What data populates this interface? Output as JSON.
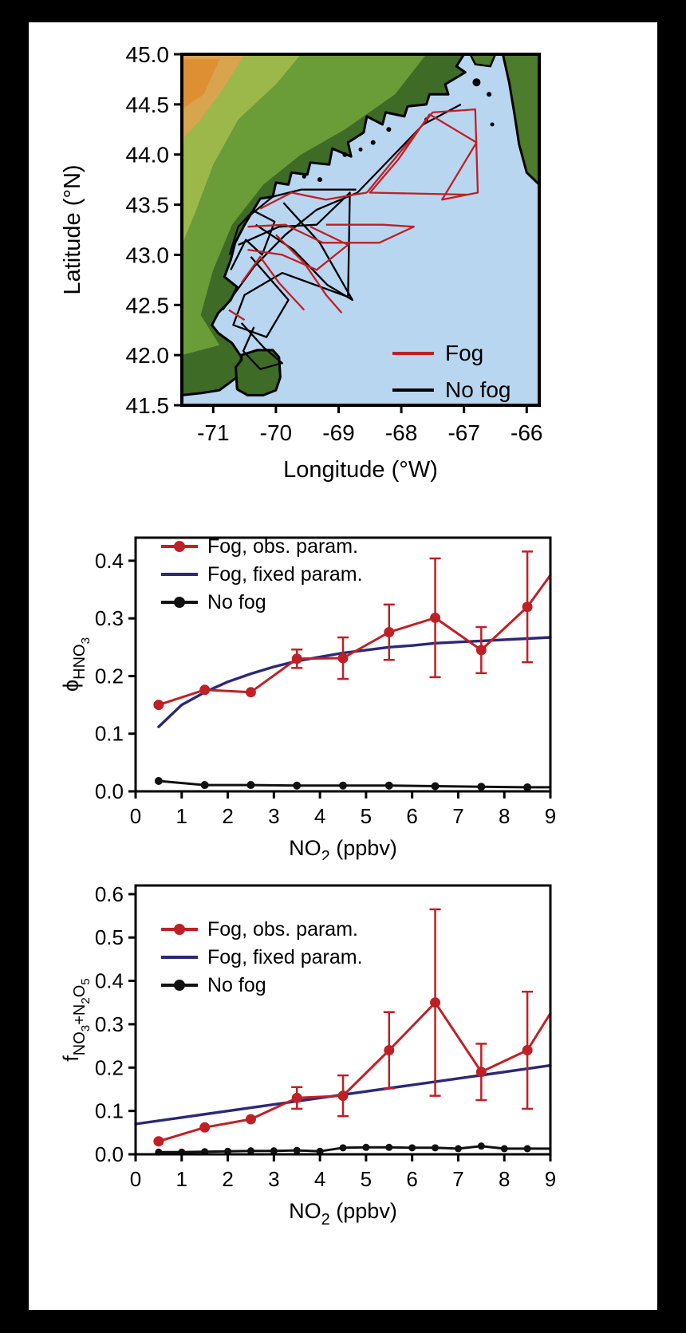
{
  "figure": {
    "frame_color": "#000000",
    "panel_color": "#ffffff"
  },
  "map": {
    "ylabel_parts": [
      [
        "Latitude (°N)",
        0
      ]
    ],
    "xlabel_parts": [
      [
        "Longitude (°W)",
        0
      ]
    ],
    "lat_range": [
      41.5,
      45.0
    ],
    "lon_range": [
      -71.5,
      -65.8
    ],
    "lat_tick_values": [
      45.0,
      44.5,
      44.0,
      43.5,
      43.0,
      42.5,
      42.0,
      41.5
    ],
    "lat_tick_labels": [
      "45.0",
      "44.5",
      "44.0",
      "43.5",
      "43.0",
      "42.5",
      "42.0",
      "41.5"
    ],
    "lon_tick_values": [
      -71,
      -70,
      -69,
      -68,
      -67,
      -66
    ],
    "lon_tick_labels": [
      "-71",
      "-70",
      "-69",
      "-68",
      "-67",
      "-66"
    ],
    "ocean_color": "#b8d6f0",
    "land_base_color": "#3e6b26",
    "legend": [
      {
        "label": "Fog",
        "color": "#bf2026"
      },
      {
        "label": "No fog",
        "color": "#000000"
      }
    ],
    "land": {
      "mainland": [
        [
          -71.5,
          45.0
        ],
        [
          -67.0,
          45.0
        ],
        [
          -67.12,
          44.88
        ],
        [
          -66.98,
          44.82
        ],
        [
          -67.3,
          44.7
        ],
        [
          -67.25,
          44.6
        ],
        [
          -67.55,
          44.6
        ],
        [
          -67.6,
          44.5
        ],
        [
          -67.9,
          44.48
        ],
        [
          -67.95,
          44.38
        ],
        [
          -68.25,
          44.42
        ],
        [
          -68.3,
          44.3
        ],
        [
          -68.55,
          44.38
        ],
        [
          -68.6,
          44.22
        ],
        [
          -68.85,
          44.12
        ],
        [
          -68.8,
          43.98
        ],
        [
          -69.1,
          44.06
        ],
        [
          -69.15,
          43.9
        ],
        [
          -69.45,
          43.92
        ],
        [
          -69.5,
          43.8
        ],
        [
          -69.75,
          43.82
        ],
        [
          -69.8,
          43.7
        ],
        [
          -70.0,
          43.72
        ],
        [
          -70.05,
          43.58
        ],
        [
          -70.25,
          43.56
        ],
        [
          -70.5,
          43.3
        ],
        [
          -70.65,
          43.12
        ],
        [
          -70.72,
          42.95
        ],
        [
          -70.82,
          42.78
        ],
        [
          -70.62,
          42.68
        ],
        [
          -70.72,
          42.55
        ],
        [
          -70.92,
          42.42
        ],
        [
          -71.02,
          42.3
        ],
        [
          -70.92,
          42.22
        ],
        [
          -70.7,
          42.12
        ],
        [
          -70.55,
          41.98
        ],
        [
          -70.62,
          41.78
        ],
        [
          -70.9,
          41.65
        ],
        [
          -71.2,
          41.62
        ],
        [
          -71.5,
          41.6
        ]
      ],
      "cape_cod": [
        [
          -70.55,
          42.0
        ],
        [
          -70.3,
          42.05
        ],
        [
          -70.05,
          42.05
        ],
        [
          -69.95,
          41.98
        ],
        [
          -69.93,
          41.78
        ],
        [
          -70.0,
          41.65
        ],
        [
          -70.2,
          41.6
        ],
        [
          -70.45,
          41.6
        ],
        [
          -70.62,
          41.66
        ],
        [
          -70.64,
          41.88
        ],
        [
          -70.55,
          41.95
        ]
      ],
      "nova_scotia": [
        [
          -66.38,
          45.0
        ],
        [
          -65.8,
          45.0
        ],
        [
          -65.8,
          43.7
        ],
        [
          -66.0,
          43.82
        ],
        [
          -66.12,
          44.1
        ],
        [
          -66.2,
          44.42
        ],
        [
          -66.28,
          44.72
        ]
      ],
      "extras": [
        [
          [
            -66.9,
            45.0
          ],
          [
            -66.5,
            45.0
          ],
          [
            -66.58,
            44.88
          ],
          [
            -66.82,
            44.9
          ]
        ]
      ],
      "overlays": [
        {
          "color": "#6a9c38",
          "points": [
            [
              -71.5,
              45.0
            ],
            [
              -67.6,
              45.0
            ],
            [
              -68.1,
              44.6
            ],
            [
              -68.9,
              44.25
            ],
            [
              -69.6,
              44.0
            ],
            [
              -70.2,
              43.7
            ],
            [
              -70.7,
              43.3
            ],
            [
              -71.0,
              42.85
            ],
            [
              -71.2,
              42.4
            ],
            [
              -70.9,
              42.1
            ],
            [
              -71.5,
              42.0
            ]
          ]
        },
        {
          "color": "#9cb84a",
          "points": [
            [
              -71.5,
              45.0
            ],
            [
              -69.6,
              45.0
            ],
            [
              -70.0,
              44.7
            ],
            [
              -70.6,
              44.35
            ],
            [
              -71.0,
              43.9
            ],
            [
              -71.3,
              43.4
            ],
            [
              -71.5,
              43.1
            ]
          ]
        },
        {
          "color": "#d9a44e",
          "points": [
            [
              -71.5,
              45.0
            ],
            [
              -70.5,
              45.0
            ],
            [
              -70.85,
              44.65
            ],
            [
              -71.2,
              44.35
            ],
            [
              -71.5,
              44.15
            ]
          ]
        },
        {
          "color": "#df8f33",
          "points": [
            [
              -71.5,
              44.95
            ],
            [
              -70.9,
              44.95
            ],
            [
              -71.15,
              44.6
            ],
            [
              -71.5,
              44.45
            ]
          ]
        }
      ],
      "islands": [
        [
          -68.9,
          44.0,
          3
        ],
        [
          -68.45,
          44.12,
          3
        ],
        [
          -68.2,
          44.25,
          3
        ],
        [
          -69.3,
          43.75,
          3
        ],
        [
          -69.55,
          43.78,
          2.5
        ],
        [
          -66.8,
          44.72,
          5
        ],
        [
          -68.65,
          44.05,
          2.5
        ],
        [
          -67.6,
          44.35,
          2.5
        ],
        [
          -66.6,
          44.6,
          3
        ],
        [
          -66.55,
          44.3,
          2.5
        ]
      ]
    },
    "tracks": {
      "fog": [
        [
          [
            -68.55,
            43.62
          ],
          [
            -67.5,
            44.42
          ],
          [
            -66.82,
            44.45
          ],
          [
            -66.78,
            43.62
          ],
          [
            -67.35,
            43.55
          ],
          [
            -66.8,
            44.12
          ],
          [
            -67.55,
            44.4
          ],
          [
            -68.05,
            43.95
          ],
          [
            -68.5,
            43.62
          ],
          [
            -66.95,
            43.6
          ]
        ],
        [
          [
            -70.45,
            43.28
          ],
          [
            -69.85,
            43.3
          ],
          [
            -69.25,
            43.12
          ],
          [
            -68.35,
            43.12
          ],
          [
            -67.8,
            43.28
          ],
          [
            -68.3,
            43.3
          ],
          [
            -69.2,
            43.3
          ]
        ],
        [
          [
            -70.25,
            43.46
          ],
          [
            -69.75,
            43.62
          ],
          [
            -69.2,
            43.55
          ],
          [
            -68.75,
            43.6
          ],
          [
            -68.55,
            43.62
          ]
        ],
        [
          [
            -70.0,
            43.2
          ],
          [
            -69.55,
            42.92
          ],
          [
            -69.2,
            42.6
          ],
          [
            -68.95,
            42.42
          ]
        ],
        [
          [
            -70.55,
            42.72
          ],
          [
            -70.25,
            42.98
          ],
          [
            -69.95,
            42.72
          ],
          [
            -69.55,
            42.45
          ]
        ],
        [
          [
            -70.45,
            43.05
          ],
          [
            -69.9,
            43.0
          ],
          [
            -69.35,
            42.85
          ],
          [
            -68.85,
            43.1
          ],
          [
            -69.45,
            43.28
          ]
        ],
        [
          [
            -70.75,
            42.45
          ],
          [
            -70.5,
            42.35
          ]
        ]
      ],
      "no_fog": [
        [
          [
            -70.85,
            42.45
          ],
          [
            -70.35,
            42.88
          ],
          [
            -69.85,
            43.2
          ],
          [
            -69.35,
            43.45
          ],
          [
            -68.7,
            43.62
          ],
          [
            -67.65,
            44.3
          ],
          [
            -67.05,
            44.5
          ]
        ],
        [
          [
            -70.6,
            43.1
          ],
          [
            -69.95,
            43.28
          ],
          [
            -69.35,
            43.3
          ],
          [
            -68.82,
            43.62
          ],
          [
            -68.85,
            42.58
          ],
          [
            -69.9,
            42.82
          ],
          [
            -70.5,
            42.6
          ],
          [
            -70.68,
            42.3
          ],
          [
            -70.15,
            42.18
          ],
          [
            -69.8,
            42.55
          ],
          [
            -70.4,
            42.98
          ]
        ],
        [
          [
            -70.5,
            43.35
          ],
          [
            -70.05,
            43.58
          ],
          [
            -69.6,
            43.65
          ],
          [
            -69.1,
            43.65
          ],
          [
            -68.72,
            43.65
          ]
        ],
        [
          [
            -70.55,
            42.32
          ],
          [
            -70.2,
            42.08
          ],
          [
            -69.9,
            41.92
          ],
          [
            -70.25,
            41.86
          ],
          [
            -70.52,
            42.04
          ],
          [
            -70.35,
            42.28
          ]
        ],
        [
          [
            -70.32,
            43.3
          ],
          [
            -69.72,
            43.05
          ],
          [
            -69.18,
            42.7
          ],
          [
            -68.78,
            42.55
          ],
          [
            -69.3,
            43.12
          ],
          [
            -69.88,
            43.52
          ]
        ],
        [
          [
            -70.72,
            42.85
          ],
          [
            -70.48,
            43.15
          ],
          [
            -70.22,
            43.0
          ],
          [
            -70.02,
            43.33
          ],
          [
            -70.36,
            43.44
          ],
          [
            -70.6,
            43.28
          ],
          [
            -70.74,
            43.0
          ]
        ]
      ]
    }
  },
  "chart_data": [
    {
      "type": "line",
      "xlabel_parts": [
        [
          "NO",
          0
        ],
        [
          "2",
          1
        ],
        [
          " (ppbv)",
          0
        ]
      ],
      "ylabel_parts": [
        [
          "ϕ",
          0
        ],
        [
          "HNO",
          1
        ],
        [
          "3",
          2
        ]
      ],
      "xlim": [
        0,
        9
      ],
      "ylim": [
        0,
        0.44
      ],
      "xticks": [
        0,
        1,
        2,
        3,
        4,
        5,
        6,
        7,
        8,
        9
      ],
      "xtick_labels": [
        "0",
        "1",
        "2",
        "3",
        "4",
        "5",
        "6",
        "7",
        "8",
        "9"
      ],
      "yticks": [
        0,
        0.1,
        0.2,
        0.3,
        0.4
      ],
      "ytick_labels": [
        "0.0",
        "0.1",
        "0.2",
        "0.3",
        "0.4"
      ],
      "legend_position": "upper left",
      "series": [
        {
          "name": "Fog, obs. param.",
          "color": "#bf2026",
          "marker": true,
          "marker_r": 6.5,
          "width": 3,
          "z": 3,
          "x": [
            0.5,
            1.5,
            2.5,
            3.5,
            4.5,
            5.5,
            6.5,
            7.5,
            8.5
          ],
          "y": [
            0.15,
            0.176,
            0.172,
            0.23,
            0.231,
            0.276,
            0.301,
            0.245,
            0.32
          ],
          "err": [
            0,
            0,
            0,
            0.016,
            0.036,
            0.048,
            0.103,
            0.04,
            0.096
          ],
          "tail": [
            9.0,
            0.375
          ]
        },
        {
          "name": "Fog, fixed param.",
          "color": "#2b2878",
          "marker": false,
          "width": 3.4,
          "z": 1,
          "x": [
            0.5,
            1,
            1.5,
            2,
            2.5,
            3,
            3.5,
            4,
            4.5,
            5,
            5.5,
            6,
            6.5,
            7,
            7.5,
            8,
            8.5,
            9
          ],
          "y": [
            0.112,
            0.15,
            0.172,
            0.19,
            0.204,
            0.216,
            0.226,
            0.233,
            0.24,
            0.245,
            0.25,
            0.253,
            0.257,
            0.259,
            0.261,
            0.263,
            0.265,
            0.267
          ]
        },
        {
          "name": "No fog",
          "color": "#111111",
          "marker": true,
          "marker_r": 5,
          "width": 3,
          "z": 2,
          "x": [
            0.5,
            1.5,
            2.5,
            3.5,
            4.5,
            5.5,
            6.5,
            7.5,
            8.5
          ],
          "y": [
            0.018,
            0.011,
            0.011,
            0.01,
            0.01,
            0.01,
            0.009,
            0.008,
            0.007
          ],
          "tail": [
            9.0,
            0.007
          ]
        }
      ]
    },
    {
      "type": "line",
      "xlabel_parts": [
        [
          "NO",
          0
        ],
        [
          "2",
          1
        ],
        [
          " (ppbv)",
          0
        ]
      ],
      "ylabel_parts": [
        [
          "f",
          0
        ],
        [
          "NO",
          1
        ],
        [
          "3",
          2
        ],
        [
          "+N",
          1
        ],
        [
          "2",
          2
        ],
        [
          "O",
          1
        ],
        [
          "5",
          2
        ]
      ],
      "xlim": [
        0,
        9
      ],
      "ylim": [
        0,
        0.62
      ],
      "xticks": [
        0,
        1,
        2,
        3,
        4,
        5,
        6,
        7,
        8,
        9
      ],
      "xtick_labels": [
        "0",
        "1",
        "2",
        "3",
        "4",
        "5",
        "6",
        "7",
        "8",
        "9"
      ],
      "yticks": [
        0,
        0.1,
        0.2,
        0.3,
        0.4,
        0.5,
        0.6
      ],
      "ytick_labels": [
        "0.0",
        "0.1",
        "0.2",
        "0.3",
        "0.4",
        "0.5",
        "0.6"
      ],
      "legend_position": "upper left",
      "series": [
        {
          "name": "Fog, obs. param.",
          "color": "#bf2026",
          "marker": true,
          "marker_r": 6.5,
          "width": 3,
          "z": 3,
          "x": [
            0.5,
            1.5,
            2.5,
            3.5,
            4.5,
            5.5,
            6.5,
            7.5,
            8.5
          ],
          "y": [
            0.03,
            0.062,
            0.081,
            0.13,
            0.135,
            0.24,
            0.35,
            0.19,
            0.24
          ],
          "err": [
            0,
            0,
            0,
            0.025,
            0.047,
            0.088,
            0.215,
            0.065,
            0.135
          ],
          "tail": [
            9.0,
            0.325
          ]
        },
        {
          "name": "Fog, fixed param.",
          "color": "#2b2878",
          "marker": false,
          "width": 3.4,
          "z": 1,
          "x": [
            0,
            9
          ],
          "y": [
            0.07,
            0.205
          ]
        },
        {
          "name": "No fog",
          "color": "#111111",
          "marker": true,
          "marker_r": 4.5,
          "width": 3,
          "z": 2,
          "x": [
            0.5,
            1,
            1.5,
            2,
            2.5,
            3,
            3.5,
            4,
            4.5,
            5,
            5.5,
            6,
            6.5,
            7,
            7.5,
            8,
            8.5
          ],
          "y": [
            0.005,
            0.005,
            0.006,
            0.007,
            0.008,
            0.008,
            0.009,
            0.007,
            0.015,
            0.016,
            0.016,
            0.015,
            0.015,
            0.013,
            0.019,
            0.013,
            0.013
          ],
          "tail": [
            9.0,
            0.013
          ]
        }
      ]
    }
  ]
}
